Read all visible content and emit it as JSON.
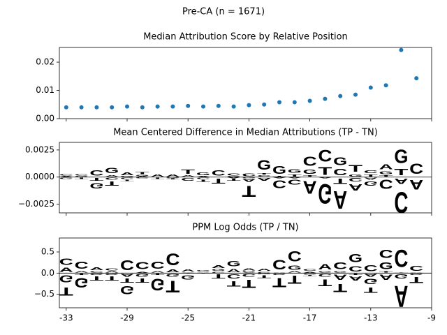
{
  "title": "Pre-CA (n = 1671)",
  "chart_data": [
    {
      "type": "scatter",
      "title": "Median Attribution Score by Relative Position",
      "x": [
        -33,
        -32,
        -31,
        -30,
        -29,
        -28,
        -27,
        -26,
        -25,
        -24,
        -23,
        -22,
        -21,
        -20,
        -19,
        -18,
        -17,
        -16,
        -15,
        -14,
        -13,
        -12,
        -11,
        -10
      ],
      "values": [
        0.004,
        0.004,
        0.004,
        0.004,
        0.0043,
        0.004,
        0.0043,
        0.0043,
        0.0045,
        0.0043,
        0.0045,
        0.0043,
        0.0048,
        0.005,
        0.0058,
        0.0058,
        0.0063,
        0.007,
        0.008,
        0.0085,
        0.011,
        0.0118,
        0.0243,
        0.0143
      ],
      "color": "#1f77b4",
      "xlim": [
        -33.45,
        -9
      ],
      "ylim": [
        0,
        0.0252
      ],
      "xticks": [
        -33,
        -29,
        -25,
        -21,
        -17,
        -13,
        -9
      ],
      "yticks": [
        {
          "value": 0,
          "label": "0.00"
        },
        {
          "value": 0.01,
          "label": "0.01"
        },
        {
          "value": 0.02,
          "label": "0.02"
        }
      ]
    },
    {
      "type": "logo",
      "title": "Mean Centered Difference in Median Attributions (TP - TN)",
      "x": [
        -33,
        -32,
        -31,
        -30,
        -29,
        -28,
        -27,
        -26,
        -25,
        -24,
        -23,
        -22,
        -21,
        -20,
        -19,
        -18,
        -17,
        -16,
        -15,
        -14,
        -13,
        -12,
        -11,
        -10
      ],
      "series": [
        {
          "name": "A",
          "color": "#008000",
          "values": [
            0.0001,
            0,
            0,
            0.0002,
            0.0004,
            0.0001,
            0.0003,
            0.0003,
            0.0002,
            0.0001,
            0,
            -0.0001,
            -0.0004,
            -0.0004,
            -0.0001,
            -0.0001,
            -0.0019,
            -0.0001,
            -0.0026,
            -0.0009,
            -0.0003,
            0.0007,
            -0.0008,
            -0.0014
          ]
        },
        {
          "name": "C",
          "color": "#0000ff",
          "values": [
            0.0002,
            0.0002,
            0.0008,
            -0.0003,
            -0.0002,
            -0.0001,
            0,
            0,
            -0.0004,
            -0.0002,
            0.0008,
            0.0003,
            0.0004,
            0.0002,
            -0.0011,
            -0.0007,
            0.0013,
            0.0017,
            0.0009,
            -0.0005,
            0.0004,
            -0.0013,
            -0.0031,
            0.0015
          ]
        },
        {
          "name": "G",
          "color": "#ffa500",
          "values": [
            -0.0002,
            0.0001,
            -0.0008,
            0.0008,
            0.0001,
            0.0001,
            0,
            -0.0001,
            0,
            0.0004,
            0,
            0.0001,
            -0.0001,
            0.0014,
            0.0011,
            0.0005,
            0.0006,
            -0.0029,
            0.0011,
            0.0003,
            -0.0006,
            0.0004,
            0.002,
            0
          ]
        },
        {
          "name": "T",
          "color": "#ff0000",
          "values": [
            0,
            -0.0002,
            -0.0004,
            -0.0006,
            -0.0002,
            0.0003,
            -0.0002,
            -0.0001,
            0.0006,
            -0.0003,
            -0.0007,
            -0.0003,
            -0.0016,
            0.0002,
            0.0001,
            0.0003,
            0.0002,
            0.0011,
            -0.0008,
            0.001,
            0.0003,
            0.0002,
            0.0009,
            0
          ]
        }
      ],
      "xlim": [
        -33.45,
        -9
      ],
      "ylim": [
        -0.0033,
        0.0032
      ],
      "xticks": [
        -33,
        -29,
        -25,
        -21,
        -17,
        -13,
        -9
      ],
      "yticks": [
        {
          "value": 0.0025,
          "label": "0.0025"
        },
        {
          "value": 0,
          "label": "0.0000"
        },
        {
          "value": -0.0025,
          "label": "−0.0025"
        }
      ]
    },
    {
      "type": "logo",
      "title": "PPM Log Odds (TP / TN)",
      "x": [
        -33,
        -32,
        -31,
        -30,
        -29,
        -28,
        -27,
        -26,
        -25,
        -24,
        -23,
        -22,
        -21,
        -20,
        -19,
        -18,
        -17,
        -16,
        -15,
        -14,
        -13,
        -12,
        -11,
        -10
      ],
      "series": [
        {
          "name": "A",
          "color": "#008000",
          "values": [
            0.15,
            0.05,
            0.1,
            0.05,
            -0.1,
            0.04,
            0.05,
            0.1,
            0.08,
            0.02,
            0.1,
            0.12,
            0.08,
            0.08,
            0.02,
            0.05,
            0.04,
            0.2,
            -0.2,
            -0.15,
            -0.1,
            -0.2,
            -0.8,
            0.02
          ]
        },
        {
          "name": "C",
          "color": "#0000ff",
          "values": [
            0.23,
            0.27,
            0.05,
            0.08,
            0.38,
            0.28,
            0.28,
            0.45,
            0.02,
            0.02,
            0.04,
            -0.15,
            -0.1,
            0.04,
            0.35,
            0.4,
            0.06,
            -0.1,
            0.25,
            0.2,
            0.22,
            0.3,
            0.65,
            0.18
          ]
        },
        {
          "name": "G",
          "color": "#ffa500",
          "values": [
            -0.28,
            -0.35,
            -0.05,
            -0.05,
            -0.3,
            -0.1,
            -0.45,
            -0.1,
            -0.15,
            0.03,
            0.06,
            0.2,
            0.05,
            -0.03,
            -0.05,
            0.15,
            -0.04,
            0.05,
            0.05,
            0.3,
            -0.2,
            0.25,
            -0.15,
            -0.05
          ]
        },
        {
          "name": "T",
          "color": "#ff0000",
          "values": [
            -0.3,
            -0.05,
            -0.15,
            -0.15,
            -0.15,
            -0.15,
            -0.05,
            -0.45,
            -0.02,
            -0.02,
            -0.15,
            -0.2,
            -0.3,
            -0.1,
            -0.35,
            -0.3,
            -0.04,
            -0.25,
            -0.3,
            -0.05,
            -0.2,
            0.05,
            0.02,
            -0.22
          ]
        }
      ],
      "xlim": [
        -33.45,
        -9
      ],
      "ylim": [
        -0.82,
        0.83
      ],
      "xticks": [
        {
          "value": -33,
          "label": "-33"
        },
        {
          "value": -29,
          "label": "-29"
        },
        {
          "value": -25,
          "label": "-25"
        },
        {
          "value": -21,
          "label": "-21"
        },
        {
          "value": -17,
          "label": "-17"
        },
        {
          "value": -13,
          "label": "-13"
        },
        {
          "value": -9,
          "label": "-9"
        }
      ],
      "yticks": [
        {
          "value": 0.5,
          "label": "0.5"
        },
        {
          "value": 0,
          "label": "0.0"
        },
        {
          "value": -0.5,
          "label": "−0.5"
        }
      ]
    }
  ]
}
